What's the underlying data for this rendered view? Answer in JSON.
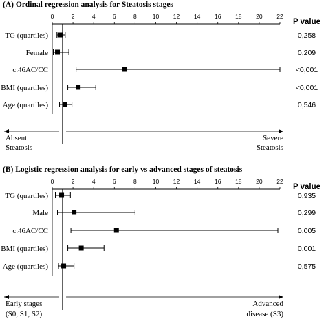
{
  "chart_data": [
    {
      "type": "forest",
      "panel": "(A)",
      "title": "Ordinal regression analysis for Steatosis stages",
      "xlim": [
        0,
        22
      ],
      "ticks": [
        0,
        2,
        4,
        6,
        8,
        10,
        12,
        14,
        16,
        18,
        20,
        22
      ],
      "reference_line": 1,
      "pvalue_header": "P value",
      "rows": [
        {
          "label": "TG (quartiles)",
          "estimate": 0.75,
          "ci": [
            0.45,
            1.25
          ],
          "pvalue": "0,258"
        },
        {
          "label": "Female",
          "estimate": 0.5,
          "ci": [
            0.1,
            1.6
          ],
          "pvalue": "0,209"
        },
        {
          "label": "c.46AC/CC",
          "estimate": 7.0,
          "ci": [
            2.3,
            22.0
          ],
          "pvalue": "<0,001"
        },
        {
          "label": "BMI (quartiles)",
          "estimate": 2.5,
          "ci": [
            1.5,
            4.2
          ],
          "pvalue": "<0,001"
        },
        {
          "label": "Age (quartiles)",
          "estimate": 1.2,
          "ci": [
            0.7,
            1.9
          ],
          "pvalue": "0,546"
        }
      ],
      "direction_left": [
        "Absent",
        "Steatosis"
      ],
      "direction_right": [
        "Severe",
        "Steatosis"
      ]
    },
    {
      "type": "forest",
      "panel": "(B)",
      "title": "Logistic regression analysis for early vs advanced stages of steatosis",
      "xlim": [
        0,
        22
      ],
      "ticks": [
        0,
        2,
        4,
        6,
        8,
        10,
        12,
        14,
        16,
        18,
        20,
        22
      ],
      "reference_line": 1,
      "pvalue_header": "P value",
      "rows": [
        {
          "label": "TG (quartiles)",
          "estimate": 0.9,
          "ci": [
            0.3,
            1.75
          ],
          "pvalue": "0,935"
        },
        {
          "label": "Male",
          "estimate": 2.1,
          "ci": [
            0.5,
            8.0
          ],
          "pvalue": "0,299"
        },
        {
          "label": "c.46AC/CC",
          "estimate": 6.2,
          "ci": [
            1.8,
            21.8
          ],
          "pvalue": "0,005"
        },
        {
          "label": "BMI (quartiles)",
          "estimate": 2.8,
          "ci": [
            1.5,
            5.0
          ],
          "pvalue": "0,001"
        },
        {
          "label": "Age (quartiles)",
          "estimate": 1.1,
          "ci": [
            0.6,
            2.1
          ],
          "pvalue": "0,575"
        }
      ],
      "direction_left": [
        "Early stages",
        "(S0, S1, S2)"
      ],
      "direction_right": [
        "Advanced",
        "disease (S3)"
      ]
    }
  ]
}
